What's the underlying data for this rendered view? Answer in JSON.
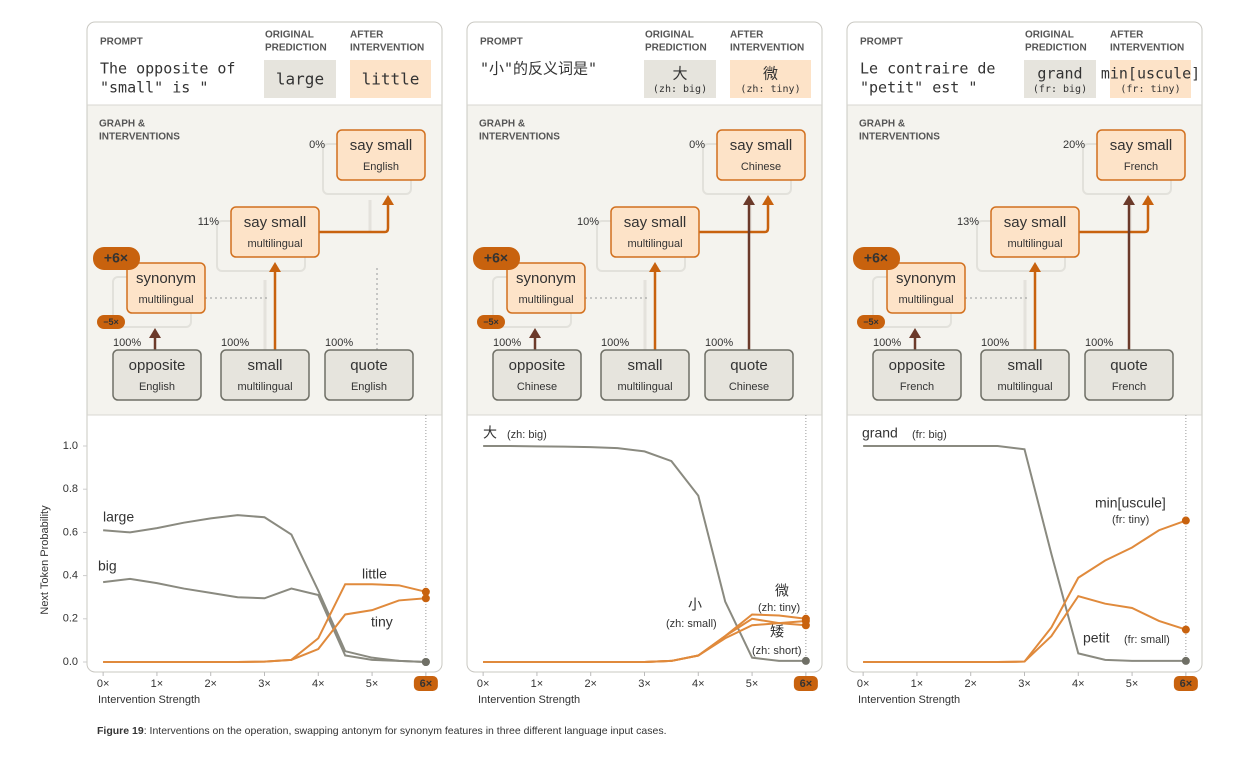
{
  "labels": {
    "prompt": "PROMPT",
    "original": [
      "ORIGINAL",
      "PREDICTION"
    ],
    "after": [
      "AFTER",
      "INTERVENTION"
    ],
    "graph": [
      "GRAPH &",
      "INTERVENTIONS"
    ]
  },
  "panels": [
    {
      "prompt": [
        "The opposite of",
        "\"small\" is \""
      ],
      "original": {
        "text": "large"
      },
      "after": {
        "text": "little"
      },
      "nodes": [
        {
          "label": "opposite",
          "sub": "English",
          "pct": "100%"
        },
        {
          "label": "small",
          "sub": "multilingual",
          "pct": "100%"
        },
        {
          "label": "quote",
          "sub": "English",
          "pct": "100%"
        },
        {
          "label": "synonym",
          "sub": "multilingual"
        },
        {
          "label": "say small",
          "sub": "multilingual",
          "pct": "11%"
        },
        {
          "label": "say small",
          "sub": "English",
          "pct": "0%"
        }
      ],
      "boosts": [
        "+6×",
        "−5×"
      ]
    },
    {
      "prompt": [
        "\"小\"的反义词是\""
      ],
      "original": {
        "text": "大",
        "gloss": "(zh: big)"
      },
      "after": {
        "text": "微",
        "gloss": "(zh: tiny)"
      },
      "nodes": [
        {
          "label": "opposite",
          "sub": "Chinese",
          "pct": "100%"
        },
        {
          "label": "small",
          "sub": "multilingual",
          "pct": "100%"
        },
        {
          "label": "quote",
          "sub": "Chinese",
          "pct": "100%"
        },
        {
          "label": "synonym",
          "sub": "multilingual"
        },
        {
          "label": "say small",
          "sub": "multilingual",
          "pct": "10%"
        },
        {
          "label": "say small",
          "sub": "Chinese",
          "pct": "0%"
        }
      ],
      "boosts": [
        "+6×",
        "−5×"
      ]
    },
    {
      "prompt": [
        "Le contraire de",
        "\"petit\" est \""
      ],
      "original": {
        "text": "grand",
        "gloss": "(fr: big)"
      },
      "after": {
        "text": "min[uscule]",
        "gloss": "(fr: tiny)"
      },
      "nodes": [
        {
          "label": "opposite",
          "sub": "French",
          "pct": "100%"
        },
        {
          "label": "small",
          "sub": "multilingual",
          "pct": "100%"
        },
        {
          "label": "quote",
          "sub": "French",
          "pct": "100%"
        },
        {
          "label": "synonym",
          "sub": "multilingual"
        },
        {
          "label": "say small",
          "sub": "multilingual",
          "pct": "13%"
        },
        {
          "label": "say small",
          "sub": "French",
          "pct": "20%"
        }
      ],
      "boosts": [
        "+6×",
        "−5×"
      ]
    }
  ],
  "chart_data": [
    {
      "type": "line",
      "xlabel": "Intervention Strength",
      "ylabel": "Next Token Probability",
      "x": [
        0,
        0.5,
        1,
        1.5,
        2,
        2.5,
        3,
        3.5,
        4,
        4.5,
        5,
        5.5,
        6
      ],
      "xlim": [
        -0.3,
        6.3
      ],
      "ylim": [
        -0.05,
        1.1
      ],
      "xticks": [
        {
          "value": 0,
          "label": "0×"
        },
        {
          "value": 1,
          "label": "1×"
        },
        {
          "value": 2,
          "label": "2×"
        },
        {
          "value": 3,
          "label": "3×"
        },
        {
          "value": 4,
          "label": "4×"
        },
        {
          "value": 5,
          "label": "5×"
        },
        {
          "value": 6,
          "label": "6×"
        }
      ],
      "yticks": [
        {
          "value": 0,
          "label": "0.0"
        },
        {
          "value": 0.2,
          "label": "0.2"
        },
        {
          "value": 0.4,
          "label": "0.4"
        },
        {
          "value": 0.6,
          "label": "0.6"
        },
        {
          "value": 0.8,
          "label": "0.8"
        },
        {
          "value": 1,
          "label": "1.0"
        }
      ],
      "series": [
        {
          "name": "large",
          "color": "#8a8a80",
          "values": [
            0.61,
            0.6,
            0.62,
            0.645,
            0.665,
            0.68,
            0.67,
            0.59,
            0.33,
            0.05,
            0.02,
            0.005,
            0.0
          ]
        },
        {
          "name": "big",
          "color": "#8a8a80",
          "values": [
            0.37,
            0.385,
            0.365,
            0.34,
            0.32,
            0.3,
            0.295,
            0.34,
            0.31,
            0.03,
            0.01,
            0.005,
            0.0
          ]
        },
        {
          "name": "little",
          "color": "#e08a3c",
          "values": [
            0,
            0,
            0,
            0,
            0,
            0,
            0.002,
            0.01,
            0.11,
            0.36,
            0.36,
            0.355,
            0.325
          ]
        },
        {
          "name": "tiny",
          "color": "#e08a3c",
          "values": [
            0,
            0,
            0,
            0,
            0,
            0,
            0.002,
            0.01,
            0.06,
            0.22,
            0.24,
            0.285,
            0.295
          ]
        }
      ]
    },
    {
      "type": "line",
      "xlabel": "Intervention Strength",
      "x": [
        0,
        0.5,
        1,
        1.5,
        2,
        2.5,
        3,
        3.5,
        4,
        4.5,
        5,
        5.5,
        6
      ],
      "xlim": [
        -0.3,
        6.3
      ],
      "ylim": [
        -0.05,
        1.1
      ],
      "xticks": [
        {
          "value": 0,
          "label": "0×"
        },
        {
          "value": 1,
          "label": "1×"
        },
        {
          "value": 2,
          "label": "2×"
        },
        {
          "value": 3,
          "label": "3×"
        },
        {
          "value": 4,
          "label": "4×"
        },
        {
          "value": 5,
          "label": "5×"
        },
        {
          "value": 6,
          "label": "6×"
        }
      ],
      "series": [
        {
          "name": "大",
          "gloss": "(zh: big)",
          "color": "#8a8a80",
          "values": [
            1.0,
            1.0,
            0.998,
            0.997,
            0.995,
            0.99,
            0.975,
            0.93,
            0.77,
            0.28,
            0.02,
            0.005,
            0.005
          ]
        },
        {
          "name": "小",
          "gloss": "(zh: small)",
          "color": "#e08a3c",
          "values": [
            0,
            0,
            0,
            0,
            0,
            0,
            0,
            0.005,
            0.03,
            0.11,
            0.17,
            0.18,
            0.19
          ]
        },
        {
          "name": "微",
          "gloss": "(zh: tiny)",
          "color": "#e08a3c",
          "values": [
            0,
            0,
            0,
            0,
            0,
            0,
            0,
            0.005,
            0.03,
            0.12,
            0.22,
            0.215,
            0.2
          ]
        },
        {
          "name": "矮",
          "gloss": "(zh: short)",
          "color": "#e08a3c",
          "values": [
            0,
            0,
            0,
            0,
            0,
            0,
            0,
            0.005,
            0.03,
            0.12,
            0.2,
            0.18,
            0.17
          ]
        }
      ]
    },
    {
      "type": "line",
      "xlabel": "Intervention Strength",
      "x": [
        0,
        0.5,
        1,
        1.5,
        2,
        2.5,
        3,
        3.5,
        4,
        4.5,
        5,
        5.5,
        6
      ],
      "xlim": [
        -0.3,
        6.3
      ],
      "ylim": [
        -0.05,
        1.1
      ],
      "xticks": [
        {
          "value": 0,
          "label": "0×"
        },
        {
          "value": 1,
          "label": "1×"
        },
        {
          "value": 2,
          "label": "2×"
        },
        {
          "value": 3,
          "label": "3×"
        },
        {
          "value": 4,
          "label": "4×"
        },
        {
          "value": 5,
          "label": "5×"
        },
        {
          "value": 6,
          "label": "6×"
        }
      ],
      "series": [
        {
          "name": "grand",
          "gloss": "(fr: big)",
          "color": "#8a8a80",
          "values": [
            1.0,
            1.0,
            1.0,
            1.0,
            1.0,
            1.0,
            0.985,
            0.5,
            0.04,
            0.01,
            0.005,
            0.005,
            0.005
          ]
        },
        {
          "name": "min[uscule]",
          "gloss": "(fr: tiny)",
          "color": "#e08a3c",
          "values": [
            0,
            0,
            0,
            0,
            0,
            0,
            0.002,
            0.16,
            0.39,
            0.47,
            0.53,
            0.61,
            0.655
          ]
        },
        {
          "name": "petit",
          "gloss": "(fr: small)",
          "color": "#e08a3c",
          "values": [
            0,
            0,
            0,
            0,
            0,
            0,
            0.002,
            0.12,
            0.305,
            0.27,
            0.25,
            0.19,
            0.15
          ]
        }
      ]
    }
  ],
  "caption": {
    "label": "Figure 19",
    "text": ": Interventions on the operation, swapping antonym for synonym features in three different language input cases."
  }
}
